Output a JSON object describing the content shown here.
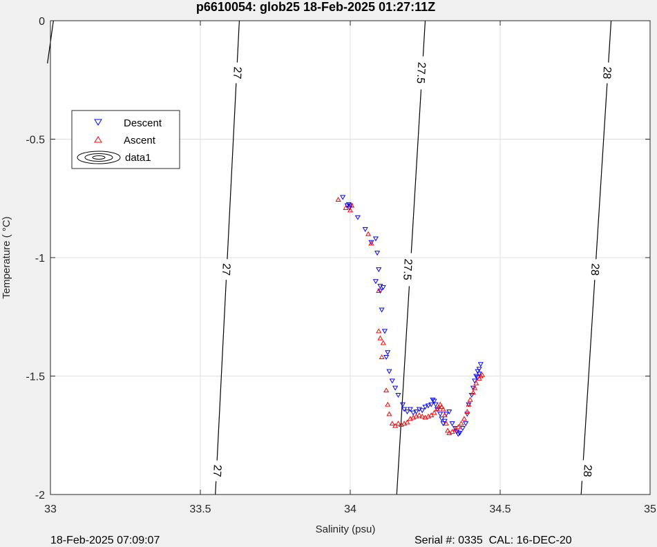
{
  "chart_data": {
    "type": "scatter",
    "title": "p6610054: glob25 18-Feb-2025 01:27:11Z",
    "xlabel": "Salinity (psu)",
    "ylabel": "Temperature (   °C)",
    "xlim": [
      33,
      35
    ],
    "ylim": [
      -2,
      0
    ],
    "xticks": [
      33,
      33.5,
      34,
      34.5,
      35
    ],
    "xtick_labels": [
      "33",
      "33.5",
      "34",
      "34.5",
      "35"
    ],
    "yticks": [
      0,
      -0.5,
      -1,
      -1.5,
      -2
    ],
    "ytick_labels": [
      "0",
      "-0.5",
      "-1",
      "-1.5",
      "-2"
    ],
    "grid": true,
    "legend_position": "upper-left",
    "legend": [
      "Descent",
      "Ascent",
      "data1"
    ],
    "contours": [
      {
        "level_label": "27",
        "points": [
          [
            33.55,
            -2
          ],
          [
            33.63,
            0
          ]
        ],
        "label_positions": [
          [
            33.555,
            -1.9
          ],
          [
            33.585,
            -1.05
          ],
          [
            33.622,
            -0.22
          ]
        ]
      },
      {
        "level_label": "27.5",
        "points": [
          [
            34.155,
            -2
          ],
          [
            34.25,
            0
          ]
        ],
        "label_positions": [
          [
            34.19,
            -1.05
          ],
          [
            34.235,
            -0.22
          ]
        ]
      },
      {
        "level_label": "28",
        "points": [
          [
            34.77,
            -2
          ],
          [
            34.87,
            0
          ]
        ],
        "label_positions": [
          [
            34.79,
            -1.9
          ],
          [
            34.815,
            -1.05
          ],
          [
            34.855,
            -0.22
          ]
        ]
      },
      {
        "level_label": "",
        "points": [
          [
            32.99,
            -0.18
          ],
          [
            33.01,
            0
          ]
        ],
        "label_positions": []
      }
    ],
    "series": [
      {
        "name": "Descent",
        "color": "#0000ff",
        "marker": "triangle-down",
        "points": [
          [
            33.975,
            -0.745
          ],
          [
            33.99,
            -0.78
          ],
          [
            33.995,
            -0.775
          ],
          [
            34.0,
            -0.78
          ],
          [
            33.998,
            -0.79
          ],
          [
            34.025,
            -0.83
          ],
          [
            34.05,
            -0.88
          ],
          [
            34.07,
            -0.935
          ],
          [
            34.085,
            -0.92
          ],
          [
            34.09,
            -0.98
          ],
          [
            34.095,
            -1.05
          ],
          [
            34.085,
            -1.1
          ],
          [
            34.1,
            -1.12
          ],
          [
            34.11,
            -1.125
          ],
          [
            34.1,
            -1.14
          ],
          [
            34.105,
            -1.22
          ],
          [
            34.115,
            -1.31
          ],
          [
            34.125,
            -1.4
          ],
          [
            34.12,
            -1.42
          ],
          [
            34.13,
            -1.48
          ],
          [
            34.14,
            -1.52
          ],
          [
            34.15,
            -1.55
          ],
          [
            34.16,
            -1.58
          ],
          [
            34.175,
            -1.62
          ],
          [
            34.18,
            -1.64
          ],
          [
            34.19,
            -1.65
          ],
          [
            34.2,
            -1.64
          ],
          [
            34.21,
            -1.655
          ],
          [
            34.22,
            -1.65
          ],
          [
            34.23,
            -1.64
          ],
          [
            34.24,
            -1.645
          ],
          [
            34.25,
            -1.63
          ],
          [
            34.26,
            -1.625
          ],
          [
            34.27,
            -1.62
          ],
          [
            34.275,
            -1.6
          ],
          [
            34.28,
            -1.605
          ],
          [
            34.285,
            -1.62
          ],
          [
            34.29,
            -1.64
          ],
          [
            34.3,
            -1.66
          ],
          [
            34.305,
            -1.68
          ],
          [
            34.31,
            -1.7
          ],
          [
            34.315,
            -1.69
          ],
          [
            34.32,
            -1.66
          ],
          [
            34.33,
            -1.65
          ],
          [
            34.34,
            -1.7
          ],
          [
            34.35,
            -1.72
          ],
          [
            34.355,
            -1.735
          ],
          [
            34.36,
            -1.745
          ],
          [
            34.365,
            -1.74
          ],
          [
            34.375,
            -1.72
          ],
          [
            34.385,
            -1.7
          ],
          [
            34.39,
            -1.66
          ],
          [
            34.395,
            -1.62
          ],
          [
            34.405,
            -1.58
          ],
          [
            34.41,
            -1.55
          ],
          [
            34.415,
            -1.52
          ],
          [
            34.42,
            -1.5
          ],
          [
            34.425,
            -1.48
          ],
          [
            34.43,
            -1.47
          ],
          [
            34.435,
            -1.45
          ],
          [
            34.43,
            -1.49
          ],
          [
            34.425,
            -1.505
          ]
        ]
      },
      {
        "name": "Ascent",
        "color": "#ff0000",
        "marker": "triangle-up",
        "points": [
          [
            33.96,
            -0.755
          ],
          [
            33.985,
            -0.79
          ],
          [
            34.0,
            -0.8
          ],
          [
            34.005,
            -0.78
          ],
          [
            34.06,
            -0.9
          ],
          [
            34.07,
            -0.94
          ],
          [
            34.095,
            -1.14
          ],
          [
            34.095,
            -1.31
          ],
          [
            34.1,
            -1.34
          ],
          [
            34.105,
            -1.42
          ],
          [
            34.11,
            -1.36
          ],
          [
            34.12,
            -1.56
          ],
          [
            34.125,
            -1.62
          ],
          [
            34.13,
            -1.66
          ],
          [
            34.14,
            -1.7
          ],
          [
            34.15,
            -1.71
          ],
          [
            34.16,
            -1.7
          ],
          [
            34.17,
            -1.705
          ],
          [
            34.18,
            -1.7
          ],
          [
            34.19,
            -1.695
          ],
          [
            34.2,
            -1.68
          ],
          [
            34.21,
            -1.675
          ],
          [
            34.22,
            -1.67
          ],
          [
            34.23,
            -1.665
          ],
          [
            34.24,
            -1.67
          ],
          [
            34.25,
            -1.675
          ],
          [
            34.26,
            -1.67
          ],
          [
            34.27,
            -1.665
          ],
          [
            34.28,
            -1.655
          ],
          [
            34.29,
            -1.64
          ],
          [
            34.295,
            -1.63
          ],
          [
            34.3,
            -1.62
          ],
          [
            34.305,
            -1.63
          ],
          [
            34.31,
            -1.64
          ],
          [
            34.315,
            -1.665
          ],
          [
            34.32,
            -1.7
          ],
          [
            34.325,
            -1.73
          ],
          [
            34.33,
            -1.74
          ],
          [
            34.34,
            -1.735
          ],
          [
            34.35,
            -1.725
          ],
          [
            34.36,
            -1.715
          ],
          [
            34.37,
            -1.7
          ],
          [
            34.38,
            -1.68
          ],
          [
            34.39,
            -1.65
          ],
          [
            34.395,
            -1.62
          ],
          [
            34.4,
            -1.6
          ],
          [
            34.41,
            -1.57
          ],
          [
            34.415,
            -1.55
          ],
          [
            34.42,
            -1.53
          ],
          [
            34.43,
            -1.51
          ],
          [
            34.435,
            -1.5
          ],
          [
            34.44,
            -1.495
          ]
        ]
      }
    ]
  },
  "footer": {
    "left": "18-Feb-2025 07:09:07",
    "right": "Serial #: 0335  CAL: 16-DEC-20"
  }
}
